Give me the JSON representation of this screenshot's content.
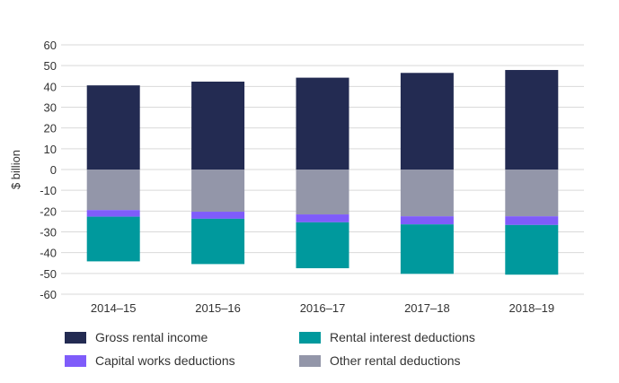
{
  "chart_data": {
    "type": "bar",
    "stacked": true,
    "ylabel": "$ billion",
    "ylim": [
      -60,
      60
    ],
    "yticks": [
      60,
      50,
      40,
      30,
      20,
      10,
      0,
      -10,
      -20,
      -30,
      -40,
      -50,
      -60
    ],
    "grid": true,
    "legend_position": "bottom",
    "categories": [
      "2014–15",
      "2015–16",
      "2016–17",
      "2017–18",
      "2018–19"
    ],
    "series": [
      {
        "name": "Gross rental income",
        "color": "#232B52",
        "values": [
          40.5,
          42.3,
          44.2,
          46.5,
          47.9
        ]
      },
      {
        "name": "Other rental deductions",
        "color": "#9396A9",
        "values": [
          -19.5,
          -20.3,
          -21.6,
          -22.5,
          -22.5
        ]
      },
      {
        "name": "Capital works deductions",
        "color": "#7F5CFA",
        "values": [
          -3.2,
          -3.4,
          -3.8,
          -3.9,
          -4.2
        ]
      },
      {
        "name": "Rental interest deductions",
        "color": "#00999D",
        "values": [
          -21.5,
          -21.8,
          -22.1,
          -23.8,
          -23.9
        ]
      }
    ]
  }
}
